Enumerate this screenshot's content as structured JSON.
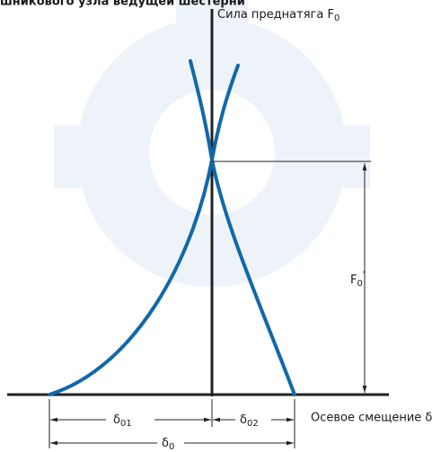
{
  "title": "шникового узла ведущей шестерни",
  "y_axis_label": {
    "text": "Сила преднатяга F",
    "sub": "0"
  },
  "x_axis_label": "Осевое смещение δ",
  "preload_label": {
    "text": "F",
    "sub": "0",
    "suffix": "′"
  },
  "dimensions": [
    {
      "text": "δ",
      "sub": "01"
    },
    {
      "text": "δ",
      "sub": "02"
    },
    {
      "text": "δ",
      "sub": "0"
    }
  ]
}
